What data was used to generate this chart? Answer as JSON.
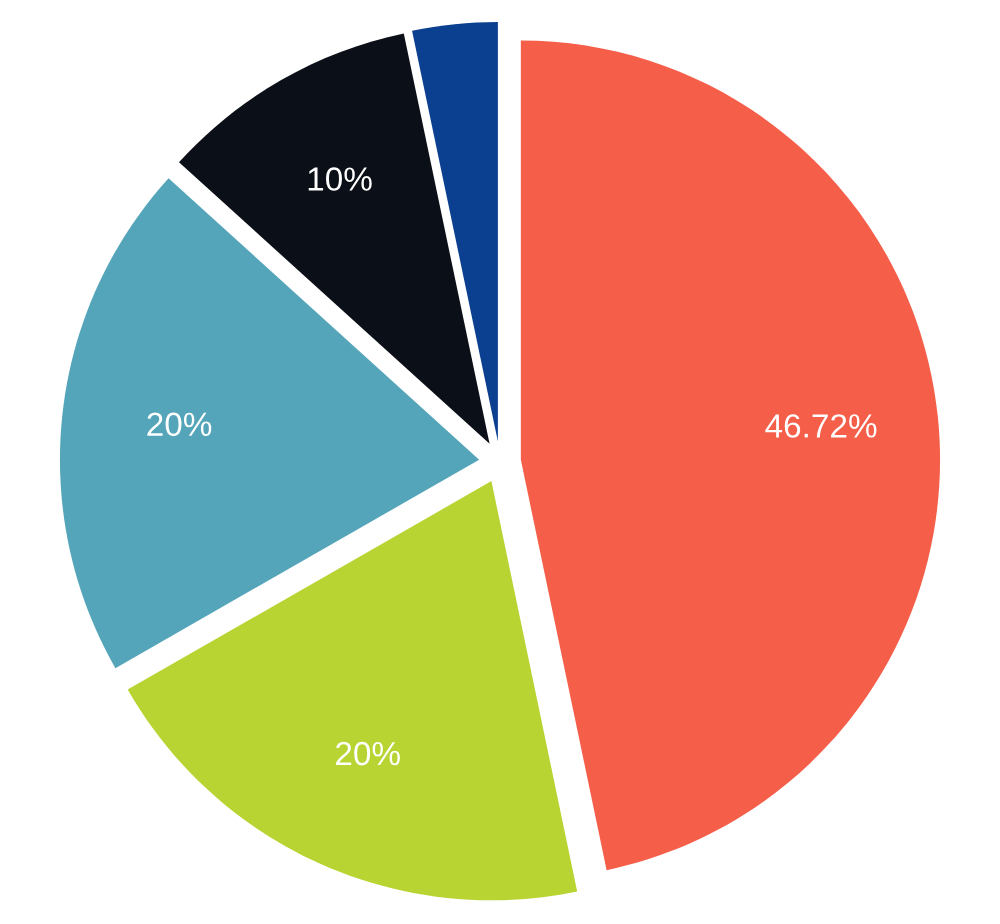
{
  "chart_data": {
    "type": "pie",
    "categories": [
      null,
      null,
      null,
      null,
      null
    ],
    "values": [
      46.72,
      20,
      20,
      10,
      3.28
    ],
    "colors": [
      "#f55f4a",
      "#b8d433",
      "#54a5b9",
      "#0b0f17",
      "#0b3f8f"
    ],
    "value_labels": [
      "46.72%",
      "20%",
      "20%",
      "10%",
      null
    ]
  }
}
